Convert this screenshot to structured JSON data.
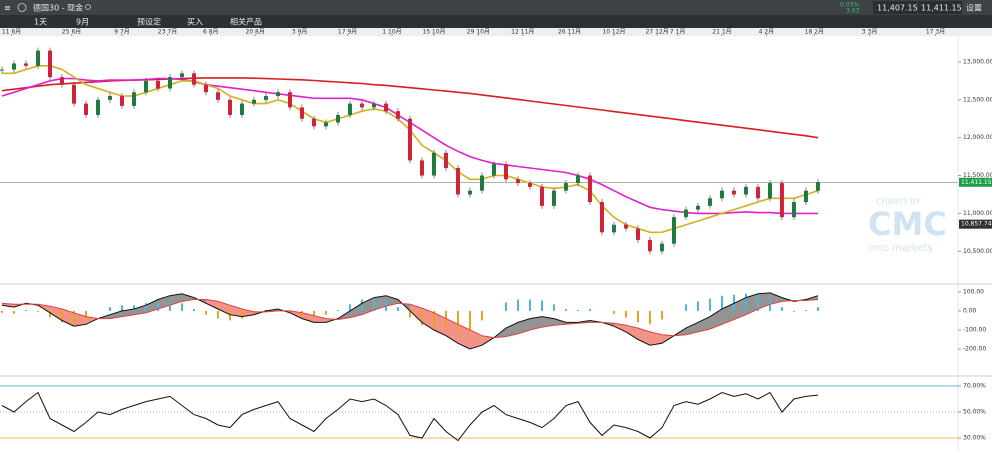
{
  "header": {
    "title": "德国30 - 现金",
    "change_pct": "0.03%",
    "change": "3.93",
    "sell": "11,407.15",
    "buy": "11,411.15",
    "settings": "设置"
  },
  "toolbar": [
    "1天",
    "9月",
    "预设定",
    "买入",
    "相关产品"
  ],
  "watermark": {
    "top": "CHARTS BY",
    "logo": "CMC",
    "bottom": "cmc markets"
  },
  "chart_data": [
    {
      "type": "candlestick",
      "xlim": [
        -0.1667,
        79.67
      ],
      "xticks": [
        {
          "value": 0.8,
          "label": "11 6月"
        },
        {
          "value": 5.8,
          "label": "25 6月"
        },
        {
          "value": 10,
          "label": "9 7月"
        },
        {
          "value": 13.8,
          "label": "23 7月"
        },
        {
          "value": 17.4,
          "label": "6 8月"
        },
        {
          "value": 21.1,
          "label": "20 8月"
        },
        {
          "value": 24.8,
          "label": "3 9月"
        },
        {
          "value": 28.8,
          "label": "17 9月"
        },
        {
          "value": 32.5,
          "label": "1 10月"
        },
        {
          "value": 36,
          "label": "15 10月"
        },
        {
          "value": 39.7,
          "label": "29 10月"
        },
        {
          "value": 43.4,
          "label": "12 11月"
        },
        {
          "value": 47.3,
          "label": "26 11月"
        },
        {
          "value": 51,
          "label": "10 12月"
        },
        {
          "value": 54.6,
          "label": "27 12月"
        },
        {
          "value": 56.3,
          "label": "7 1月"
        },
        {
          "value": 60,
          "label": "21 1月"
        },
        {
          "value": 63.7,
          "label": "4 2月"
        },
        {
          "value": 67.7,
          "label": "18 2月"
        },
        {
          "value": 72.3,
          "label": "3 3月"
        },
        {
          "value": 77.8,
          "label": "17 3月"
        }
      ],
      "ylim": [
        10094,
        13343
      ],
      "yticks": [
        {
          "value": 13000,
          "label": "13,000.00"
        },
        {
          "value": 12500,
          "label": "12,500.00"
        },
        {
          "value": 12000,
          "label": "12,000.00"
        },
        {
          "value": 11500,
          "label": "11,500.00"
        },
        {
          "value": 11000,
          "label": "11,000.00"
        },
        {
          "value": 10500,
          "label": "10,500.00"
        }
      ],
      "last_price": {
        "value": 11411.15,
        "label": "11,411.15"
      },
      "level": {
        "value": 10857.74,
        "label": "10,857.74"
      },
      "up_color": "#1f7a3e",
      "down_color": "#d0233b",
      "series": [
        {
          "color": "#222222",
          "values": [
            12900,
            12980,
            12950,
            13150,
            12800,
            12700,
            12450,
            12300,
            12500,
            12550,
            12420,
            12600,
            12750,
            12650,
            12800,
            12850,
            12700,
            12600,
            12500,
            12300,
            12450,
            12500,
            12550,
            12600,
            12400,
            12250,
            12150,
            12200,
            12300,
            12450,
            12400,
            12450,
            12350,
            12250,
            11700,
            11500,
            11800,
            11600,
            11250,
            11300,
            11500,
            11650,
            11450,
            11400,
            11350,
            11100,
            11300,
            11400,
            11500,
            11150,
            10750,
            10850,
            10800,
            10650,
            10500,
            10600,
            10950,
            11050,
            11100,
            11200,
            11300,
            11250,
            11350,
            11200,
            11400,
            10950,
            11150,
            11300,
            11411.15
          ]
        },
        {
          "color": "#d42020",
          "values": [
            12620,
            12640,
            12660,
            12680,
            12700,
            12710,
            12720,
            12730,
            12740,
            12750,
            12755,
            12760,
            12765,
            12770,
            12775,
            12780,
            12785,
            12790,
            12790,
            12790,
            12790,
            12785,
            12780,
            12775,
            12770,
            12765,
            12755,
            12745,
            12735,
            12725,
            12715,
            12700,
            12690,
            12675,
            12660,
            12645,
            12630,
            12615,
            12600,
            12585,
            12565,
            12545,
            12525,
            12505,
            12485,
            12465,
            12445,
            12425,
            12405,
            12385,
            12365,
            12345,
            12325,
            12305,
            12285,
            12265,
            12245,
            12225,
            12205,
            12185,
            12165,
            12145,
            12125,
            12105,
            12085,
            12065,
            12045,
            12025,
            12000
          ]
        },
        {
          "color": "#e020d0",
          "values": [
            12550,
            12600,
            12650,
            12700,
            12750,
            12780,
            12780,
            12760,
            12750,
            12760,
            12760,
            12760,
            12770,
            12780,
            12780,
            12770,
            12740,
            12700,
            12680,
            12660,
            12640,
            12620,
            12600,
            12580,
            12560,
            12540,
            12520,
            12520,
            12520,
            12520,
            12500,
            12450,
            12400,
            12300,
            12200,
            12100,
            12000,
            11900,
            11820,
            11750,
            11700,
            11660,
            11640,
            11620,
            11600,
            11580,
            11560,
            11540,
            11500,
            11450,
            11380,
            11300,
            11220,
            11150,
            11080,
            11050,
            11030,
            11010,
            11000,
            11000,
            11000,
            11010,
            11020,
            11010,
            11010,
            11000,
            11000,
            11000,
            11000
          ]
        },
        {
          "color": "#d4b020",
          "values": [
            12850,
            12850,
            12900,
            12950,
            12950,
            12900,
            12800,
            12700,
            12650,
            12600,
            12550,
            12550,
            12600,
            12650,
            12700,
            12750,
            12750,
            12700,
            12650,
            12550,
            12500,
            12450,
            12450,
            12500,
            12450,
            12350,
            12250,
            12200,
            12250,
            12300,
            12350,
            12380,
            12350,
            12250,
            12100,
            11900,
            11800,
            11700,
            11550,
            11450,
            11450,
            11500,
            11500,
            11450,
            11400,
            11350,
            11330,
            11350,
            11380,
            11300,
            11100,
            10950,
            10850,
            10800,
            10750,
            10750,
            10800,
            10850,
            10900,
            10950,
            11000,
            11050,
            11100,
            11150,
            11200,
            11200,
            11200,
            11250,
            11300
          ]
        }
      ]
    },
    {
      "type": "macd",
      "ylim": [
        -284,
        131
      ],
      "yticks": [
        {
          "value": 100,
          "label": "100.00"
        },
        {
          "value": 0,
          "label": "0.00"
        },
        {
          "value": -100,
          "label": "-100.00"
        },
        {
          "value": -200,
          "label": "-200.00"
        }
      ],
      "histogram": {
        "up_color": "#4ab8e0",
        "down_color": "#f0a020",
        "values": [
          -10,
          -15,
          5,
          -5,
          -35,
          -60,
          -70,
          -40,
          0,
          20,
          30,
          30,
          40,
          50,
          50,
          40,
          10,
          -20,
          -40,
          -50,
          -40,
          -15,
          5,
          10,
          -10,
          -30,
          -35,
          -20,
          5,
          35,
          60,
          65,
          55,
          20,
          -35,
          -75,
          -90,
          -90,
          -100,
          -100,
          -50,
          0,
          45,
          60,
          60,
          55,
          35,
          10,
          5,
          10,
          0,
          -15,
          -35,
          -60,
          -70,
          -45,
          0,
          35,
          50,
          65,
          80,
          85,
          90,
          80,
          60,
          20,
          -5,
          5,
          20
        ]
      },
      "series": [
        {
          "color": "#111111",
          "values": [
            30,
            20,
            40,
            30,
            -10,
            -50,
            -80,
            -70,
            -40,
            -20,
            0,
            10,
            30,
            60,
            80,
            90,
            70,
            40,
            10,
            -20,
            -30,
            -20,
            0,
            10,
            -10,
            -40,
            -60,
            -60,
            -40,
            0,
            40,
            70,
            80,
            60,
            0,
            -60,
            -100,
            -130,
            -170,
            -200,
            -180,
            -140,
            -90,
            -60,
            -40,
            -30,
            -40,
            -60,
            -60,
            -50,
            -60,
            -80,
            -110,
            -150,
            -180,
            -170,
            -130,
            -90,
            -60,
            -30,
            10,
            40,
            70,
            90,
            95,
            70,
            50,
            60,
            80
          ]
        },
        {
          "color": "#e04040",
          "values": [
            40,
            35,
            35,
            35,
            25,
            10,
            -10,
            -30,
            -40,
            -40,
            -30,
            -20,
            -10,
            10,
            30,
            50,
            60,
            60,
            50,
            30,
            10,
            -5,
            -5,
            0,
            0,
            -10,
            -25,
            -40,
            -45,
            -35,
            -20,
            5,
            25,
            40,
            35,
            15,
            -10,
            -40,
            -70,
            -100,
            -130,
            -140,
            -135,
            -120,
            -100,
            -85,
            -75,
            -70,
            -65,
            -60,
            -60,
            -65,
            -75,
            -90,
            -110,
            -125,
            -130,
            -125,
            -110,
            -95,
            -70,
            -45,
            -20,
            10,
            35,
            50,
            55,
            55,
            60
          ]
        }
      ]
    },
    {
      "type": "line",
      "ylim": [
        20,
        71.5
      ],
      "yticks": [
        {
          "value": 70,
          "label": "70.00%"
        },
        {
          "value": 50,
          "label": "50.00%"
        },
        {
          "value": 30,
          "label": "30.00%"
        }
      ],
      "series": [
        {
          "color": "#111111",
          "values": [
            55,
            50,
            58,
            65,
            45,
            40,
            35,
            42,
            50,
            48,
            52,
            55,
            58,
            60,
            62,
            55,
            48,
            45,
            40,
            38,
            48,
            52,
            55,
            58,
            45,
            40,
            35,
            45,
            52,
            60,
            58,
            60,
            55,
            48,
            32,
            30,
            45,
            35,
            28,
            40,
            50,
            55,
            48,
            45,
            42,
            38,
            45,
            55,
            58,
            42,
            32,
            40,
            38,
            35,
            30,
            38,
            55,
            58,
            56,
            60,
            65,
            62,
            64,
            60,
            65,
            50,
            60,
            62,
            63
          ]
        }
      ]
    }
  ]
}
